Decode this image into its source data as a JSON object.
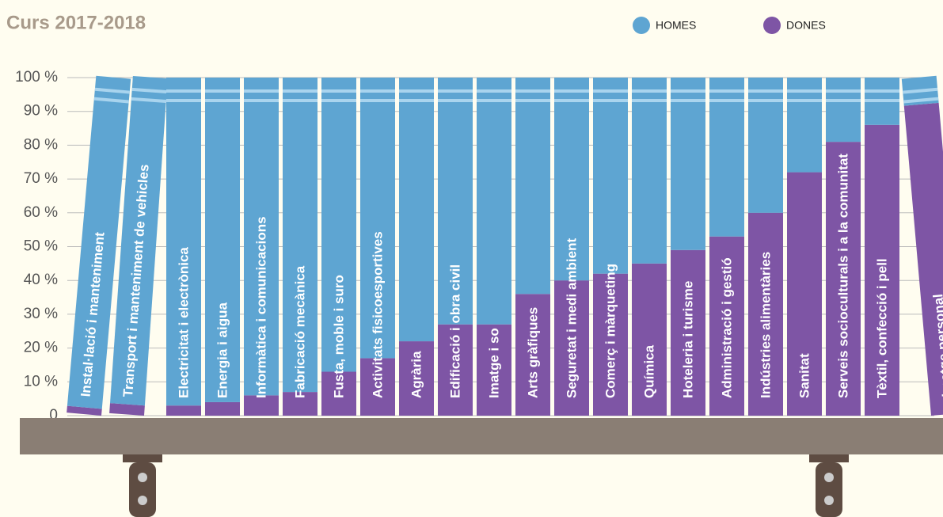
{
  "chart_data": {
    "type": "stacked_bar",
    "title": "Curs 2017-2018",
    "categories": [
      "Instal·lació i manteniment",
      "Transport i manteniment de vehicles",
      "Electricitat i electrònica",
      "Energia i aigua",
      "Informàtica i comunicacions",
      "Fabricació mecànica",
      "Fusta, moble i suro",
      "Activitats fisicoesportives",
      "Agrària",
      "Edificació i obra civil",
      "Imatge i so",
      "Arts gràfiques",
      "Seguretat i medi ambient",
      "Comerç i màrqueting",
      "Química",
      "Hoteleria i turisme",
      "Administració i gestió",
      "Indústries alimentàries",
      "Sanitat",
      "Serveis socioculturals i a la comunitat",
      "Tèxtil, confecció i pell",
      "Imatge personal"
    ],
    "series": [
      {
        "name": "DONES",
        "color": "#7e55a5",
        "values": [
          2,
          3,
          3,
          4,
          6,
          7,
          13,
          17,
          22,
          27,
          27,
          36,
          40,
          42,
          45,
          49,
          53,
          60,
          72,
          81,
          86,
          92
        ]
      },
      {
        "name": "HOMES",
        "color": "#5ea5d2",
        "values": [
          98,
          97,
          97,
          96,
          94,
          93,
          87,
          83,
          78,
          73,
          73,
          64,
          60,
          58,
          55,
          51,
          47,
          40,
          28,
          19,
          14,
          8
        ]
      }
    ],
    "ylim": [
      0,
      100
    ],
    "yticks": [
      0,
      {
        "value": 10,
        "label": "10 %"
      },
      {
        "value": 20,
        "label": "20 %"
      },
      {
        "value": 30,
        "label": "30 %"
      },
      {
        "value": 40,
        "label": "40 %"
      },
      {
        "value": 50,
        "label": "50 %"
      },
      {
        "value": 60,
        "label": "60 %"
      },
      {
        "value": 70,
        "label": "70 %"
      },
      {
        "value": 80,
        "label": "80 %"
      },
      {
        "value": 90,
        "label": "90 %"
      },
      {
        "value": 100,
        "label": "100 %"
      }
    ],
    "grid": true
  }
}
